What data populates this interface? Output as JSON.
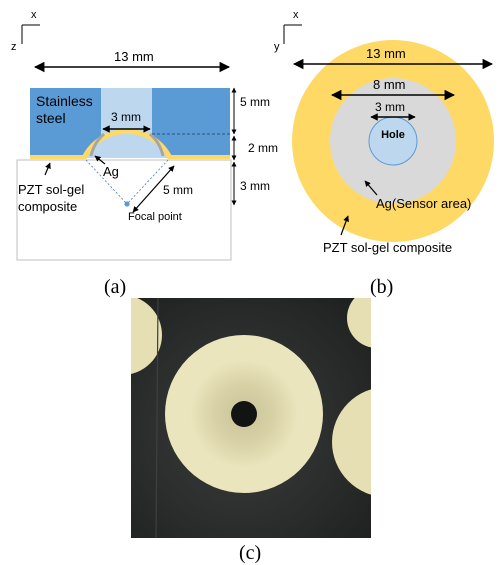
{
  "panel_a": {
    "caption": "(a)",
    "axis_x": "x",
    "axis_z": "z",
    "width_label": "13 mm",
    "steel_label_line1": "Stainless",
    "steel_label_line2": "steel",
    "hole_label": "3 mm",
    "dim_steel": "5 mm",
    "dim_dome": "2 mm",
    "dim_below": "3 mm",
    "ag_label": "Ag",
    "pzt_line1": "PZT sol-gel",
    "pzt_line2": "composite",
    "focal_dist": "5 mm",
    "focal_label": "Focal point"
  },
  "panel_b": {
    "caption": "(b)",
    "axis_x": "x",
    "axis_y": "y",
    "outer_label": "13 mm",
    "ag_dia_label": "8 mm",
    "hole_dia_label": "3 mm",
    "hole_text": "Hole",
    "ag_label": "Ag(Sensor area)",
    "pzt_label": "PZT sol-gel composite"
  },
  "panel_c": {
    "caption": "(c)"
  },
  "colors": {
    "steel": "#5b9bd5",
    "steel_light": "#bdd7ee",
    "pzt": "#ffd966",
    "ag": "#d9d9d9",
    "hole": "#bdd7ee",
    "photo_bg": "#2a2d2b",
    "ceramic": "#e6dfb3"
  }
}
